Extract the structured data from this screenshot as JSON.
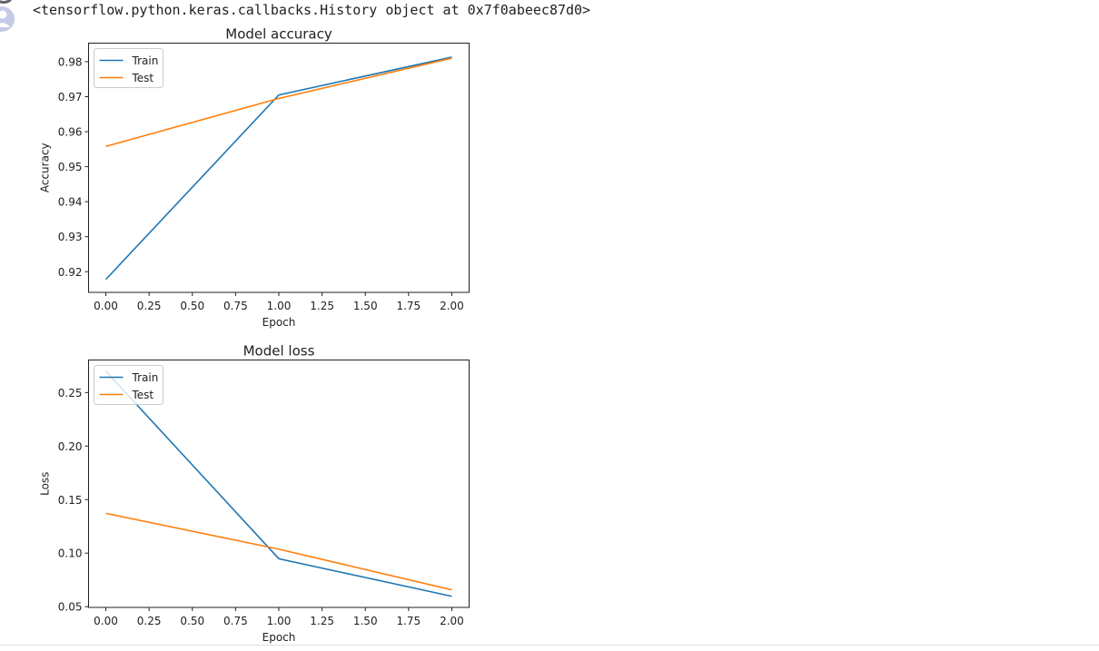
{
  "output": {
    "text": "<tensorflow.python.keras.callbacks.History object at 0x7f0abeec87d0>"
  },
  "icons": {
    "output_toggle": "output-toggle-icon",
    "output_avatar": "output-avatar-icon"
  },
  "colors": {
    "train": "#1f77b4",
    "test": "#ff7f0e"
  },
  "chart_data": [
    {
      "type": "line",
      "title": "Model accuracy",
      "xlabel": "Epoch",
      "ylabel": "Accuracy",
      "xlim": [
        -0.1,
        2.1
      ],
      "ylim": [
        0.9141,
        0.9853
      ],
      "xticks": [
        0.0,
        0.25,
        0.5,
        0.75,
        1.0,
        1.25,
        1.5,
        1.75,
        2.0
      ],
      "xtick_labels": [
        "0.00",
        "0.25",
        "0.50",
        "0.75",
        "1.00",
        "1.25",
        "1.50",
        "1.75",
        "2.00"
      ],
      "yticks": [
        0.92,
        0.93,
        0.94,
        0.95,
        0.96,
        0.97,
        0.98
      ],
      "ytick_labels": [
        "0.92",
        "0.93",
        "0.94",
        "0.95",
        "0.96",
        "0.97",
        "0.98"
      ],
      "x": [
        0,
        1,
        2
      ],
      "series": [
        {
          "name": "Train",
          "values": [
            0.9178,
            0.9705,
            0.9813
          ]
        },
        {
          "name": "Test",
          "values": [
            0.9558,
            0.9695,
            0.981
          ]
        }
      ],
      "legend": "upper left",
      "grid": false
    },
    {
      "type": "line",
      "title": "Model loss",
      "xlabel": "Epoch",
      "ylabel": "Loss",
      "xlim": [
        -0.1,
        2.1
      ],
      "ylim": [
        0.0493,
        0.2804
      ],
      "xticks": [
        0.0,
        0.25,
        0.5,
        0.75,
        1.0,
        1.25,
        1.5,
        1.75,
        2.0
      ],
      "xtick_labels": [
        "0.00",
        "0.25",
        "0.50",
        "0.75",
        "1.00",
        "1.25",
        "1.50",
        "1.75",
        "2.00"
      ],
      "yticks": [
        0.05,
        0.1,
        0.15,
        0.2,
        0.25
      ],
      "ytick_labels": [
        "0.05",
        "0.10",
        "0.15",
        "0.20",
        "0.25"
      ],
      "x": [
        0,
        1,
        2
      ],
      "series": [
        {
          "name": "Train",
          "values": [
            0.2699,
            0.0948,
            0.0597
          ]
        },
        {
          "name": "Test",
          "values": [
            0.1372,
            0.1037,
            0.0657
          ]
        }
      ],
      "legend": "upper left",
      "grid": false
    }
  ]
}
